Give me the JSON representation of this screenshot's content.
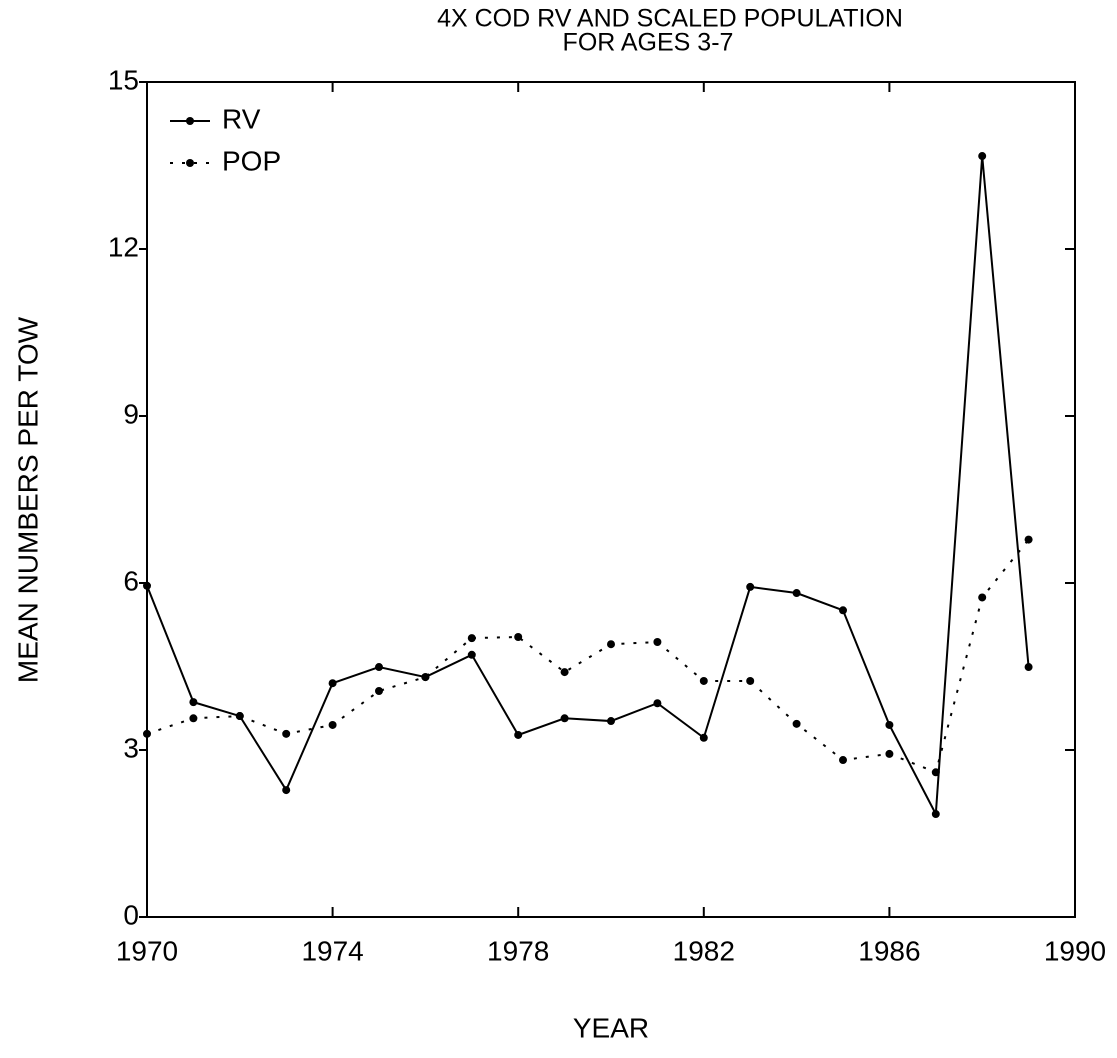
{
  "chart_data": {
    "type": "line",
    "title": "4X COD RV AND SCALED POPULATION",
    "subtitle": "FOR AGES 3-7",
    "x_label": "YEAR",
    "y_label": "MEAN NUMBERS PER TOW",
    "x": [
      1970,
      1971,
      1972,
      1973,
      1974,
      1975,
      1976,
      1977,
      1978,
      1979,
      1980,
      1981,
      1982,
      1983,
      1984,
      1985,
      1986,
      1987,
      1988,
      1989
    ],
    "series": [
      {
        "name": "RV",
        "color": "#000000",
        "dash": "solid",
        "values": [
          5.95,
          3.86,
          3.61,
          2.28,
          4.2,
          4.49,
          4.31,
          4.71,
          3.27,
          3.57,
          3.52,
          3.84,
          3.22,
          5.93,
          5.82,
          5.51,
          3.45,
          1.85,
          13.67,
          4.49
        ]
      },
      {
        "name": "POP",
        "color": "#000000",
        "dash": "dotted",
        "values": [
          3.29,
          3.57,
          3.61,
          3.29,
          3.45,
          4.06,
          4.31,
          5.01,
          5.03,
          4.4,
          4.9,
          4.94,
          4.24,
          4.24,
          3.47,
          2.82,
          2.93,
          2.6,
          5.74,
          6.78
        ]
      }
    ],
    "xlim": [
      1970,
      1990
    ],
    "xticks": [
      1970,
      1974,
      1978,
      1982,
      1986,
      1990
    ],
    "ylim": [
      0,
      15
    ],
    "yticks": [
      0,
      3,
      6,
      9,
      12,
      15
    ],
    "legend": "top-left",
    "grid": false
  }
}
